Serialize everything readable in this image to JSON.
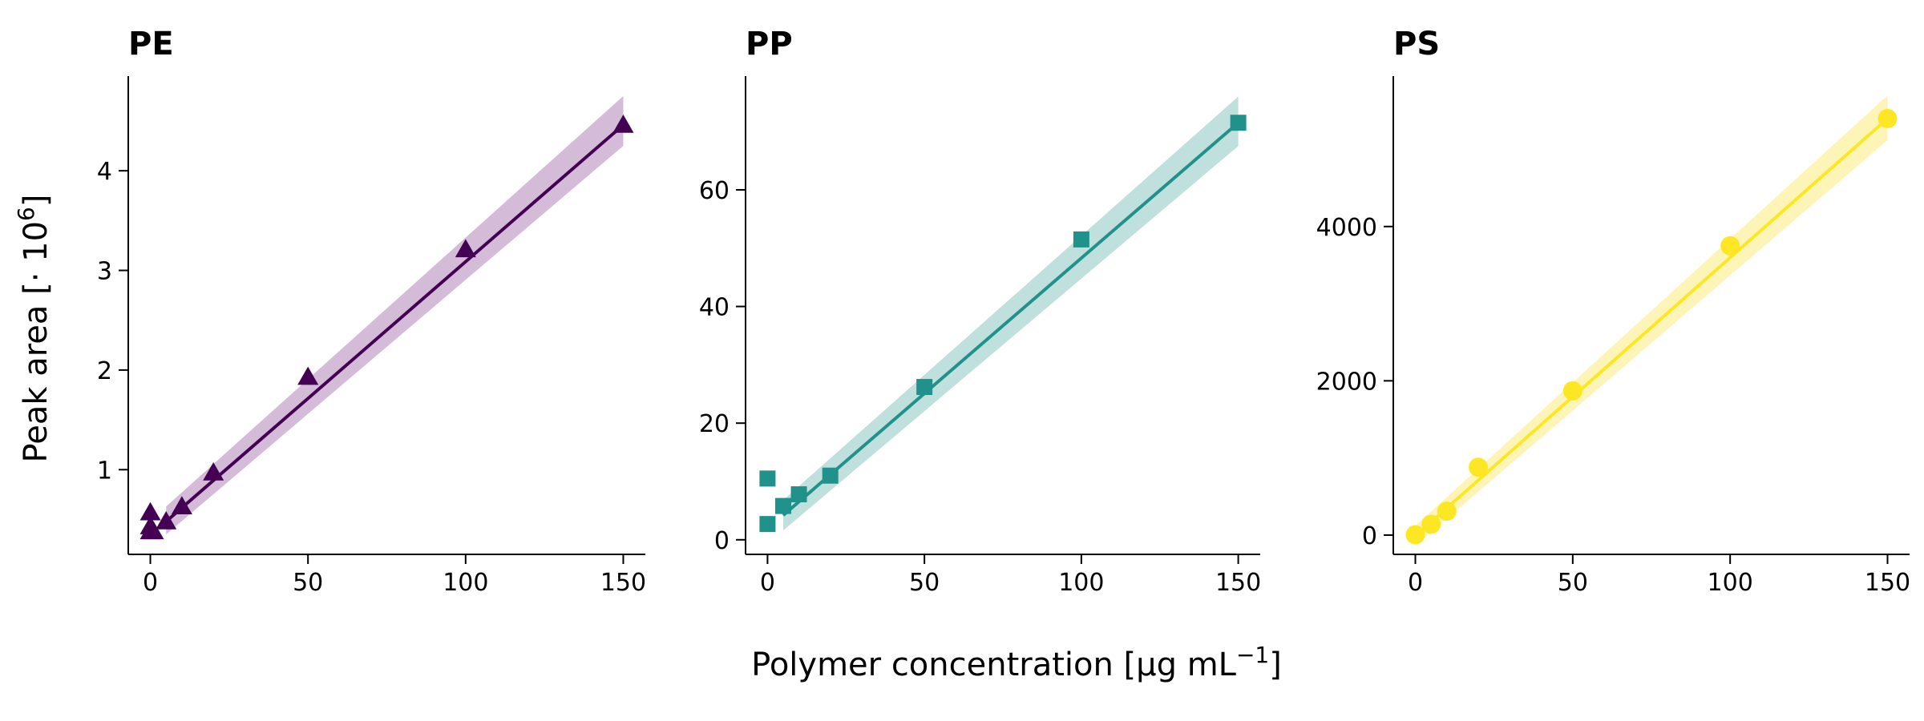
{
  "figure": {
    "xlabel": "Polymer concentration [µg mL",
    "xlabel_exp": "−1",
    "xlabel_close": "]",
    "ylabel": "Peak area [· 10",
    "ylabel_exp": "6",
    "ylabel_close": "]"
  },
  "chart_data": [
    {
      "type": "scatter",
      "title": "PE",
      "marker": "triangle",
      "color": "#440154",
      "band_color": "#d4bcd9",
      "xlim": [
        -7,
        157
      ],
      "ylim": [
        0.15,
        4.95
      ],
      "xticks": [
        0,
        50,
        100,
        150
      ],
      "yticks": [
        1,
        2,
        3,
        4
      ],
      "points": [
        {
          "x": 0,
          "y": 0.57
        },
        {
          "x": 0,
          "y": 0.43
        },
        {
          "x": 0,
          "y": 0.38
        },
        {
          "x": 1,
          "y": 0.38
        },
        {
          "x": 5,
          "y": 0.48
        },
        {
          "x": 10,
          "y": 0.63
        },
        {
          "x": 20,
          "y": 0.97
        },
        {
          "x": 50,
          "y": 1.93
        },
        {
          "x": 100,
          "y": 3.21
        },
        {
          "x": 150,
          "y": 4.46
        }
      ],
      "fit": {
        "x": [
          5,
          150
        ],
        "y": [
          0.48,
          4.46
        ]
      },
      "band": {
        "x": [
          5,
          150
        ],
        "upper": [
          0.63,
          4.75
        ],
        "lower": [
          0.35,
          4.25
        ]
      }
    },
    {
      "type": "scatter",
      "title": "PP",
      "marker": "square",
      "color": "#21918c",
      "band_color": "#bfe0dd",
      "xlim": [
        -7,
        157
      ],
      "ylim": [
        -2.5,
        79.5
      ],
      "xticks": [
        0,
        50,
        100,
        150
      ],
      "yticks": [
        0,
        20,
        40,
        60
      ],
      "points": [
        {
          "x": 0,
          "y": 10.5
        },
        {
          "x": 0,
          "y": 2.7
        },
        {
          "x": 5,
          "y": 5.8
        },
        {
          "x": 10,
          "y": 7.8
        },
        {
          "x": 20,
          "y": 11.0
        },
        {
          "x": 50,
          "y": 26.2
        },
        {
          "x": 100,
          "y": 51.5
        },
        {
          "x": 150,
          "y": 71.5
        }
      ],
      "fit": {
        "x": [
          5,
          150
        ],
        "y": [
          4.2,
          71.5
        ]
      },
      "band": {
        "x": [
          5,
          150
        ],
        "upper": [
          6.8,
          76.0
        ],
        "lower": [
          1.6,
          67.5
        ]
      }
    },
    {
      "type": "scatter",
      "title": "PS",
      "marker": "circle",
      "color": "#fde725",
      "band_color": "#fdf5b8",
      "xlim": [
        -7,
        157
      ],
      "ylim": [
        -250,
        5950
      ],
      "xticks": [
        0,
        50,
        100,
        150
      ],
      "yticks": [
        0,
        2000,
        4000
      ],
      "points": [
        {
          "x": 0,
          "y": 5
        },
        {
          "x": 5,
          "y": 140
        },
        {
          "x": 10,
          "y": 310
        },
        {
          "x": 20,
          "y": 880
        },
        {
          "x": 50,
          "y": 1870
        },
        {
          "x": 100,
          "y": 3750
        },
        {
          "x": 150,
          "y": 5400
        }
      ],
      "fit": {
        "x": [
          0,
          150
        ],
        "y": [
          -10,
          5400
        ]
      },
      "band": {
        "x": [
          0,
          150
        ],
        "upper": [
          120,
          5700
        ],
        "lower": [
          -140,
          5120
        ]
      }
    }
  ]
}
